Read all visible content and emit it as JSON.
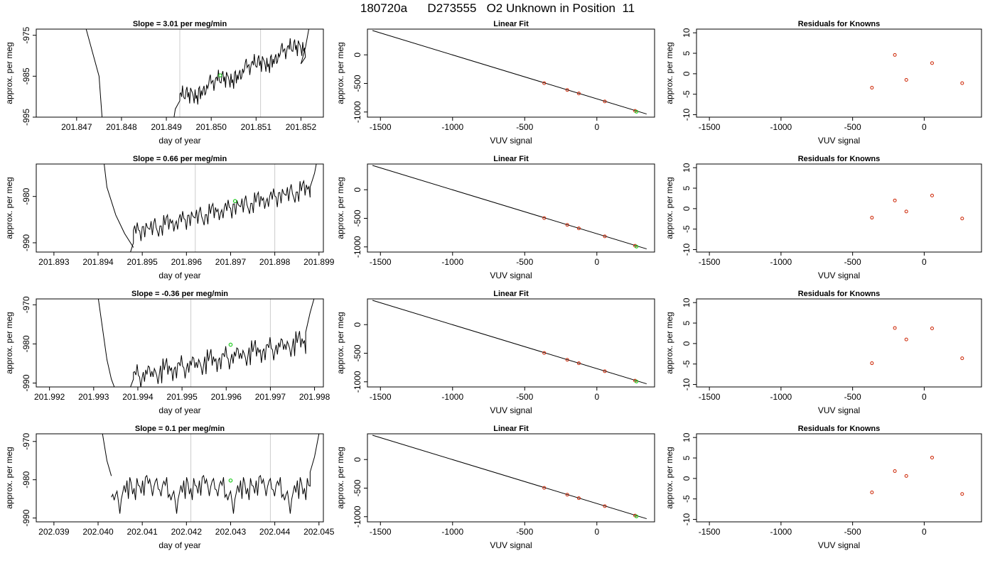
{
  "page_title": "180720a      D273555   O2 Unknown in Position  11",
  "colors": {
    "trace": "#000000",
    "guide_line": "#cccccc",
    "unknown_point": "#22cc22",
    "known_point": "#cc2200"
  },
  "chart_data": [
    {
      "type": "line",
      "row": 0,
      "col": 0,
      "title": "Slope =  3.01  per meg/min",
      "xlabel": "day of year",
      "ylabel": "approx. per meg",
      "xlim": [
        201.8461,
        201.8525
      ],
      "ylim": [
        -995,
        -973.5
      ],
      "x_ticks": [
        201.847,
        201.848,
        201.849,
        201.85,
        201.851,
        201.852
      ],
      "x_tick_labels": [
        "201.847",
        "201.848",
        "201.849",
        "201.850",
        "201.851",
        "201.852"
      ],
      "y_ticks": [
        -975,
        -985,
        -995
      ],
      "y_tick_labels": [
        "-975",
        "-985",
        "-995"
      ],
      "guides": [
        201.8493,
        201.8511
      ],
      "unknown_point": {
        "x": 201.8502,
        "y": -984.8
      },
      "trace": {
        "pre_x": [
          201.8472,
          201.8475,
          201.8476
        ],
        "pre_y": [
          -973,
          -985,
          -1000
        ],
        "start": 201.8493,
        "end": 201.8521,
        "y_start": -991,
        "y_end": -977.5,
        "pre_ramp": [
          [
            201.8491,
            -1000
          ],
          [
            201.8492,
            -993
          ],
          [
            201.8493,
            -991
          ]
        ],
        "post_ramp": [
          [
            201.852,
            -982
          ],
          [
            201.8521,
            -978
          ],
          [
            201.8522,
            -972
          ]
        ],
        "noise": [
          0,
          1.5,
          -1.2,
          2.1,
          -0.8,
          1.7,
          -1.6,
          0.9,
          2.2,
          -1.1,
          0.6,
          -1.9,
          1.4,
          2.0,
          -0.7,
          1.1,
          -1.5,
          2.3,
          -0.4,
          0.8,
          -2.0,
          1.6,
          0.3,
          -1.3,
          1.9,
          -0.9,
          1.2,
          2.4,
          -1.7,
          0.5,
          -0.6,
          1.8,
          -1.4,
          0.7,
          2.1,
          -1.0,
          0.4,
          1.3,
          -1.8,
          0.2
        ]
      }
    },
    {
      "type": "line",
      "row": 1,
      "col": 0,
      "title": "Slope =  0.66  per meg/min",
      "xlabel": "day of year",
      "ylabel": "approx. per meg",
      "xlim": [
        201.8926,
        201.8991
      ],
      "ylim": [
        -992,
        -973
      ],
      "x_ticks": [
        201.893,
        201.894,
        201.895,
        201.896,
        201.897,
        201.898,
        201.899
      ],
      "x_tick_labels": [
        "201.893",
        "201.894",
        "201.895",
        "201.896",
        "201.897",
        "201.898",
        "201.899"
      ],
      "y_ticks": [
        -980,
        -990
      ],
      "y_tick_labels": [
        "-980",
        "-990"
      ],
      "guides": [
        201.8962,
        201.898
      ],
      "unknown_point": {
        "x": 201.8971,
        "y": -981
      },
      "trace": {
        "pre_x": [
          201.8941,
          201.8942,
          201.8944,
          201.8946,
          201.8948
        ],
        "pre_y": [
          -970,
          -978,
          -984,
          -988,
          -991
        ],
        "start": 201.8948,
        "end": 201.8988,
        "y_start": -988,
        "y_end": -978.5,
        "pre_ramp": [
          [
            201.8947,
            -993
          ],
          [
            201.8948,
            -990
          ]
        ],
        "post_ramp": [
          [
            201.8988,
            -978
          ],
          [
            201.8989,
            -975
          ],
          [
            201.899,
            -970
          ]
        ],
        "noise": [
          0,
          1.2,
          -1.4,
          0.9,
          -0.6,
          1.5,
          -1.1,
          0.4,
          1.8,
          -1.3,
          0.7,
          -0.9,
          1.6,
          -0.5,
          1.1,
          -1.5,
          0.8,
          1.4,
          -1.0,
          0.3,
          -1.6,
          1.2,
          0.6,
          -0.8,
          1.7,
          -1.2,
          0.5,
          1.0,
          -1.4,
          0.9,
          -0.3,
          1.3,
          -1.1,
          0.6,
          1.5,
          -0.7
        ]
      }
    },
    {
      "type": "line",
      "row": 2,
      "col": 0,
      "title": "Slope =  -0.36  per meg/min",
      "xlabel": "day of year",
      "ylabel": "approx. per meg",
      "xlim": [
        201.9917,
        201.9982
      ],
      "ylim": [
        -991,
        -968.5
      ],
      "x_ticks": [
        201.992,
        201.993,
        201.994,
        201.995,
        201.996,
        201.997,
        201.998
      ],
      "x_tick_labels": [
        "201.992",
        "201.993",
        "201.994",
        "201.995",
        "201.996",
        "201.997",
        "201.998"
      ],
      "y_ticks": [
        -970,
        -980,
        -990
      ],
      "y_tick_labels": [
        "-970",
        "-980",
        "-990"
      ],
      "guides": [
        201.9952,
        201.997
      ],
      "unknown_point": {
        "x": 201.9961,
        "y": -980.2
      },
      "trace": {
        "pre_x": [
          201.9931,
          201.9932,
          201.9933,
          201.9934,
          201.9935
        ],
        "pre_y": [
          -968,
          -976,
          -984,
          -989,
          -992
        ],
        "start": 201.9939,
        "end": 201.9978,
        "y_start": -989,
        "y_end": -980,
        "pre_ramp": [
          [
            201.9938,
            -992
          ],
          [
            201.9939,
            -989
          ]
        ],
        "post_ramp": [
          [
            201.9978,
            -977
          ],
          [
            201.9979,
            -972
          ],
          [
            201.998,
            -968
          ]
        ],
        "noise": [
          0,
          1.6,
          -1.3,
          2.2,
          -0.7,
          1.4,
          -1.9,
          1.0,
          2.5,
          -1.0,
          0.5,
          -1.7,
          1.8,
          2.3,
          -0.9,
          1.2,
          -1.4,
          2.6,
          -0.5,
          0.9,
          -1.8,
          1.5,
          0.2,
          -1.2,
          2.0,
          -1.0,
          1.3,
          2.4,
          -1.5,
          0.6,
          -0.4,
          1.7,
          -1.3,
          0.8,
          2.0,
          -1.1
        ]
      }
    },
    {
      "type": "line",
      "row": 3,
      "col": 0,
      "title": "Slope =  0.1  per meg/min",
      "xlabel": "day of year",
      "ylabel": "approx. per meg",
      "xlim": [
        202.0386,
        202.0451
      ],
      "ylim": [
        -991,
        -968
      ],
      "x_ticks": [
        202.039,
        202.04,
        202.041,
        202.042,
        202.043,
        202.044,
        202.045
      ],
      "x_tick_labels": [
        "202.039",
        "202.040",
        "202.041",
        "202.042",
        "202.043",
        "202.044",
        "202.045"
      ],
      "y_ticks": [
        -970,
        -980,
        -990
      ],
      "y_tick_labels": [
        "-970",
        "-980",
        "-990"
      ],
      "guides": [
        202.0421,
        202.0439
      ],
      "unknown_point": {
        "x": 202.043,
        "y": -980.2
      },
      "trace": {
        "pre_x": [
          202.0401,
          202.0402,
          202.0403
        ],
        "pre_y": [
          -968,
          -975,
          -979
        ],
        "start": 202.0403,
        "end": 202.0448,
        "y_start": -982,
        "y_end": -982,
        "pre_ramp": [],
        "post_ramp": [
          [
            202.0448,
            -978
          ],
          [
            202.0449,
            -974
          ],
          [
            202.045,
            -968
          ]
        ],
        "noise": [
          0,
          -1.5,
          -2.3,
          -3.2,
          -2.0,
          -3.5,
          -4.5,
          -2.5,
          -1.2,
          1.3,
          -0.6,
          2.0,
          -1.1,
          0.8,
          2.4,
          -0.9,
          1.1,
          -1.6,
          1.5,
          -0.4,
          0.9,
          -1.3,
          1.8,
          -0.6,
          1.2,
          2.1,
          -0.8,
          0.4,
          -1.2,
          1.5,
          -0.5,
          1.0,
          2.2,
          -1.0,
          0.6,
          -1.5,
          1.4,
          0.2,
          -0.7,
          1.7
        ]
      }
    },
    {
      "type": "scatter",
      "row": 0,
      "col": 1,
      "title": "Linear Fit",
      "xlabel": "VUV signal",
      "ylabel": "approx. per meg",
      "xlim": [
        -1590,
        400
      ],
      "ylim": [
        -1090,
        450
      ],
      "x_ticks": [
        -1500,
        -1000,
        -500,
        0
      ],
      "x_tick_labels": [
        "-1500",
        "-1000",
        "-500",
        "0"
      ],
      "y_ticks": [
        0,
        -500,
        -1000
      ],
      "y_tick_labels": [
        "0",
        "-500",
        "-1000"
      ],
      "fit_line": [
        [
          -1555,
          425
        ],
        [
          345,
          -1035
        ]
      ],
      "knowns": [
        [
          -365,
          -495
        ],
        [
          -205,
          -615
        ],
        [
          -125,
          -675
        ],
        [
          55,
          -815
        ],
        [
          265,
          -980
        ]
      ],
      "unknown": [
        [
          265,
          -982
        ]
      ]
    },
    {
      "type": "scatter",
      "row": 1,
      "col": 1,
      "title": "Linear Fit",
      "xlabel": "VUV signal",
      "ylabel": "approx. per meg",
      "xlim": [
        -1590,
        400
      ],
      "ylim": [
        -1090,
        450
      ],
      "x_ticks": [
        -1500,
        -1000,
        -500,
        0
      ],
      "x_tick_labels": [
        "-1500",
        "-1000",
        "-500",
        "0"
      ],
      "y_ticks": [
        0,
        -500,
        -1000
      ],
      "y_tick_labels": [
        "0",
        "-500",
        "-1000"
      ],
      "fit_line": [
        [
          -1555,
          425
        ],
        [
          345,
          -1035
        ]
      ],
      "knowns": [
        [
          -365,
          -495
        ],
        [
          -205,
          -615
        ],
        [
          -125,
          -675
        ],
        [
          55,
          -815
        ],
        [
          265,
          -980
        ]
      ],
      "unknown": [
        [
          265,
          -982
        ]
      ]
    },
    {
      "type": "scatter",
      "row": 2,
      "col": 1,
      "title": "Linear Fit",
      "xlabel": "VUV signal",
      "ylabel": "approx. per meg",
      "xlim": [
        -1590,
        400
      ],
      "ylim": [
        -1090,
        450
      ],
      "x_ticks": [
        -1500,
        -1000,
        -500,
        0
      ],
      "x_tick_labels": [
        "-1500",
        "-1000",
        "-500",
        "0"
      ],
      "y_ticks": [
        0,
        -500,
        -1000
      ],
      "y_tick_labels": [
        "0",
        "-500",
        "-1000"
      ],
      "fit_line": [
        [
          -1555,
          425
        ],
        [
          345,
          -1035
        ]
      ],
      "knowns": [
        [
          -365,
          -495
        ],
        [
          -205,
          -615
        ],
        [
          -125,
          -675
        ],
        [
          55,
          -815
        ],
        [
          265,
          -980
        ]
      ],
      "unknown": [
        [
          265,
          -982
        ]
      ]
    },
    {
      "type": "scatter",
      "row": 3,
      "col": 1,
      "title": "Linear Fit",
      "xlabel": "VUV signal",
      "ylabel": "approx. per meg",
      "xlim": [
        -1590,
        400
      ],
      "ylim": [
        -1090,
        450
      ],
      "x_ticks": [
        -1500,
        -1000,
        -500,
        0
      ],
      "x_tick_labels": [
        "-1500",
        "-1000",
        "-500",
        "0"
      ],
      "y_ticks": [
        0,
        -500,
        -1000
      ],
      "y_tick_labels": [
        "0",
        "-500",
        "-1000"
      ],
      "fit_line": [
        [
          -1555,
          425
        ],
        [
          345,
          -1035
        ]
      ],
      "knowns": [
        [
          -365,
          -495
        ],
        [
          -205,
          -615
        ],
        [
          -125,
          -675
        ],
        [
          55,
          -815
        ],
        [
          265,
          -980
        ]
      ],
      "unknown": [
        [
          265,
          -982
        ]
      ]
    },
    {
      "type": "scatter",
      "row": 0,
      "col": 2,
      "title": "Residuals for Knowns",
      "xlabel": "VUV signal",
      "ylabel": "approx. per meg",
      "xlim": [
        -1590,
        400
      ],
      "ylim": [
        -10.6,
        10.9
      ],
      "x_ticks": [
        -1500,
        -1000,
        -500,
        0
      ],
      "x_tick_labels": [
        "-1500",
        "-1000",
        "-500",
        "0"
      ],
      "y_ticks": [
        10,
        5,
        0,
        -5,
        -10
      ],
      "y_tick_labels": [
        "10",
        "5",
        "0",
        "-5",
        "-10"
      ],
      "knowns": [
        [
          -365,
          -3.4
        ],
        [
          -205,
          4.6
        ],
        [
          -125,
          -1.5
        ],
        [
          55,
          2.6
        ],
        [
          265,
          -2.3
        ]
      ]
    },
    {
      "type": "scatter",
      "row": 1,
      "col": 2,
      "title": "Residuals for Knowns",
      "xlabel": "VUV signal",
      "ylabel": "approx. per meg",
      "xlim": [
        -1590,
        400
      ],
      "ylim": [
        -10.6,
        10.9
      ],
      "x_ticks": [
        -1500,
        -1000,
        -500,
        0
      ],
      "x_tick_labels": [
        "-1500",
        "-1000",
        "-500",
        "0"
      ],
      "y_ticks": [
        10,
        5,
        0,
        -5,
        -10
      ],
      "y_tick_labels": [
        "10",
        "5",
        "0",
        "-5",
        "-10"
      ],
      "knowns": [
        [
          -365,
          -2.2
        ],
        [
          -205,
          2.0
        ],
        [
          -125,
          -0.7
        ],
        [
          55,
          3.2
        ],
        [
          265,
          -2.4
        ]
      ]
    },
    {
      "type": "scatter",
      "row": 2,
      "col": 2,
      "title": "Residuals for Knowns",
      "xlabel": "VUV signal",
      "ylabel": "approx. per meg",
      "xlim": [
        -1590,
        400
      ],
      "ylim": [
        -10.6,
        10.9
      ],
      "x_ticks": [
        -1500,
        -1000,
        -500,
        0
      ],
      "x_tick_labels": [
        "-1500",
        "-1000",
        "-500",
        "0"
      ],
      "y_ticks": [
        10,
        5,
        0,
        -5,
        -10
      ],
      "y_tick_labels": [
        "10",
        "5",
        "0",
        "-5",
        "-10"
      ],
      "knowns": [
        [
          -365,
          -4.8
        ],
        [
          -205,
          3.8
        ],
        [
          -125,
          1.0
        ],
        [
          55,
          3.7
        ],
        [
          265,
          -3.6
        ]
      ]
    },
    {
      "type": "scatter",
      "row": 3,
      "col": 2,
      "title": "Residuals for Knowns",
      "xlabel": "VUV signal",
      "ylabel": "approx. per meg",
      "xlim": [
        -1590,
        400
      ],
      "ylim": [
        -10.6,
        10.9
      ],
      "x_ticks": [
        -1500,
        -1000,
        -500,
        0
      ],
      "x_tick_labels": [
        "-1500",
        "-1000",
        "-500",
        "0"
      ],
      "y_ticks": [
        10,
        5,
        0,
        -5,
        -10
      ],
      "y_tick_labels": [
        "10",
        "5",
        "0",
        "-5",
        "-10"
      ],
      "knowns": [
        [
          -365,
          -3.4
        ],
        [
          -205,
          1.8
        ],
        [
          -125,
          0.6
        ],
        [
          55,
          5.1
        ],
        [
          265,
          -3.8
        ]
      ]
    }
  ]
}
